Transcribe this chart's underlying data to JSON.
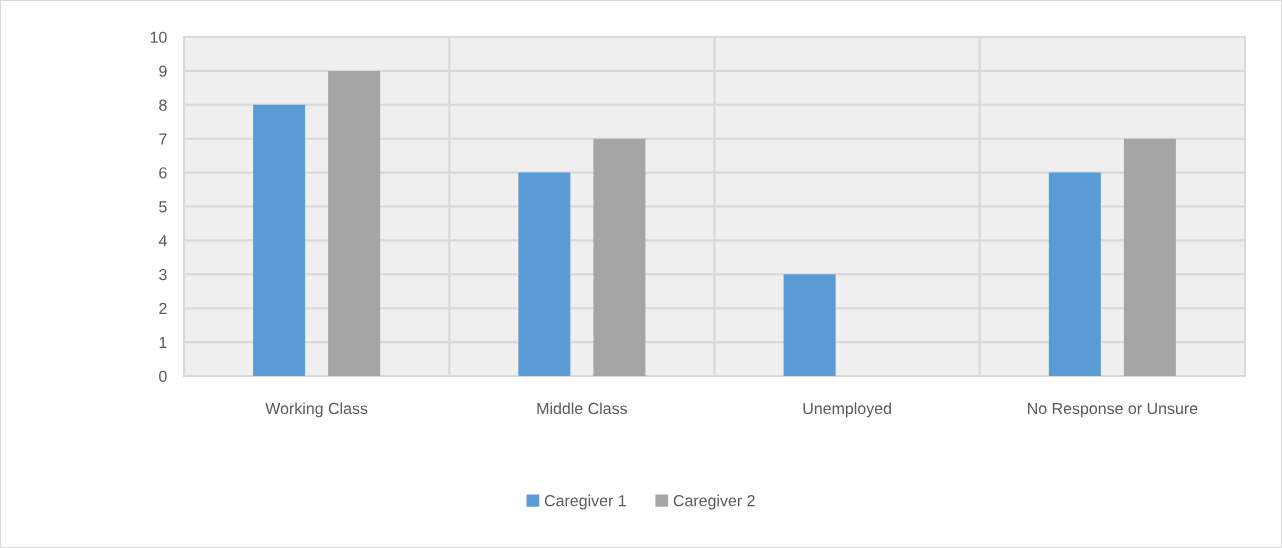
{
  "chart_data": {
    "type": "bar",
    "categories": [
      "Working Class",
      "Middle Class",
      "Unemployed",
      "No Response or Unsure"
    ],
    "series": [
      {
        "name": "Caregiver 1",
        "color": "#5b9bd5",
        "values": [
          8,
          6,
          3,
          6
        ]
      },
      {
        "name": "Caregiver 2",
        "color": "#a5a5a5",
        "values": [
          9,
          7,
          0,
          7
        ]
      }
    ],
    "ylim": [
      0,
      10
    ],
    "yticks": [
      0,
      1,
      2,
      3,
      4,
      5,
      6,
      7,
      8,
      9,
      10
    ],
    "grid": true,
    "legend": "bottom"
  }
}
